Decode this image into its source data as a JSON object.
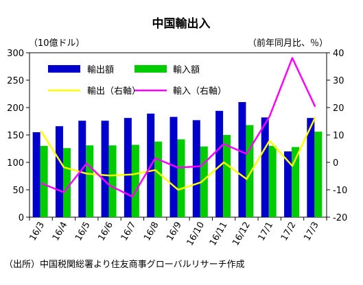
{
  "chart_data": {
    "type": "bar+line",
    "title": "中国輸出入",
    "left_axis": {
      "unit": "（10億ドル）",
      "ticks": [
        "0",
        "50",
        "100",
        "150",
        "200",
        "250",
        "300"
      ],
      "range": [
        0,
        300
      ]
    },
    "right_axis": {
      "unit": "（前年同月比、％）",
      "ticks": [
        "-20",
        "-10",
        "0",
        "10",
        "20",
        "30",
        "40"
      ],
      "range": [
        -20,
        40
      ]
    },
    "categories": [
      "16/3",
      "16/4",
      "16/5",
      "16/6",
      "16/7",
      "16/8",
      "16/9",
      "16/10",
      "16/11",
      "16/12",
      "17/1",
      "17/2",
      "17/3"
    ],
    "series": [
      {
        "name": "輸出額",
        "type": "bar",
        "axis": "left",
        "color": "#0000cc",
        "values": [
          155,
          166,
          176,
          176,
          181,
          189,
          183,
          177,
          194,
          210,
          182,
          120,
          181
        ]
      },
      {
        "name": "輸入額",
        "type": "bar",
        "axis": "left",
        "color": "#00cc00",
        "values": [
          130,
          126,
          131,
          131,
          132,
          138,
          142,
          129,
          150,
          168,
          130,
          128,
          156
        ]
      },
      {
        "name": "輸出（右軸）",
        "type": "line",
        "axis": "right",
        "color": "#ffff00",
        "values": [
          11.5,
          -1.8,
          -4.1,
          -4.8,
          -4.4,
          -2.8,
          -10,
          -7.3,
          0,
          -6.1,
          7.9,
          -1.3,
          16.4
        ]
      },
      {
        "name": "輸入（右軸）",
        "type": "line",
        "axis": "right",
        "color": "#ff00ff",
        "values": [
          -7.6,
          -10.9,
          -0.4,
          -8.4,
          -12.5,
          1.5,
          -1.9,
          -1.4,
          6.7,
          3.1,
          16.7,
          38.1,
          20.3
        ]
      }
    ]
  },
  "source": "（出所）中国税関総署より住友商事グローバルリサーチ作成"
}
